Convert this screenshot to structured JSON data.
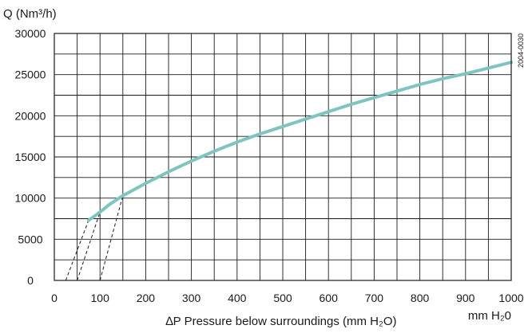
{
  "chart_data": {
    "type": "line",
    "ylabel": "Q (Nm³/h)",
    "xlabel": "∆P Pressure below surroundings (mm H₂O)",
    "xunit": "mm H₂0",
    "code": "2004-0030",
    "xlim": [
      0,
      1000
    ],
    "ylim": [
      0,
      30000
    ],
    "xticks": [
      "0",
      "100",
      "200",
      "300",
      "400",
      "500",
      "600",
      "700",
      "800",
      "900",
      "1000"
    ],
    "yticks": [
      "0",
      "5000",
      "10000",
      "15000",
      "20000",
      "25000",
      "30000"
    ],
    "grid": true,
    "colors": {
      "curve": "#7ec4bf",
      "grid": "#1a1a1a",
      "guide": "#1a1a1a"
    },
    "series": [
      {
        "x": [
          75,
          90,
          100,
          120,
          150,
          200,
          250,
          300,
          350,
          400,
          450,
          500,
          550,
          600,
          650,
          700,
          750,
          800,
          850,
          900,
          950,
          1000
        ],
        "y": [
          7300,
          7900,
          8300,
          9200,
          10300,
          11800,
          13200,
          14500,
          15700,
          16800,
          17800,
          18700,
          19600,
          20500,
          21400,
          22200,
          23000,
          23800,
          24500,
          25100,
          25800,
          26500
        ]
      }
    ],
    "guides": [
      {
        "from": [
          25,
          0
        ],
        "to": [
          75,
          7300
        ]
      },
      {
        "from": [
          50,
          0
        ],
        "to": [
          100,
          8300
        ]
      },
      {
        "from": [
          100,
          0
        ],
        "to": [
          150,
          10300
        ]
      }
    ]
  }
}
